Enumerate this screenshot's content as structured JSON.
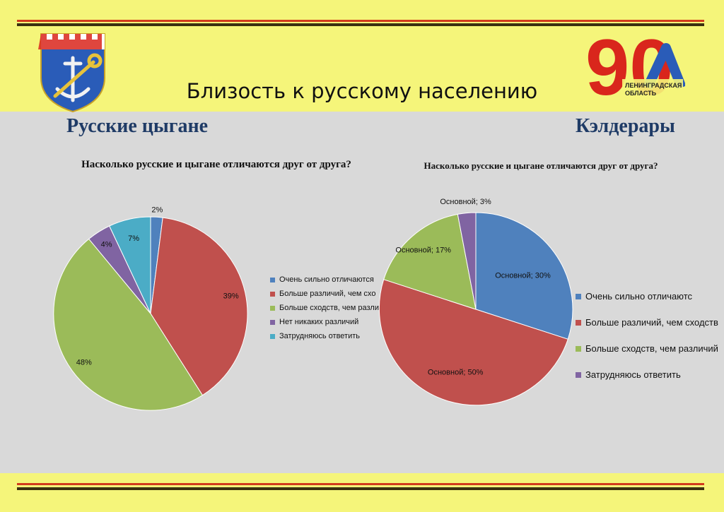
{
  "slide": {
    "title": "Близость к русскому населению",
    "logo_text": [
      "ЛЕНИНГРАДСКАЯ",
      "ОБЛАСТЬ"
    ],
    "logo_number": "90",
    "colors": {
      "background": "#f5f57a",
      "panel": "#d9d9d9",
      "band_dark": "#3a3010",
      "band_red": "#d23b1c",
      "group_title": "#1f3b66",
      "logo_red": "#d9261c"
    }
  },
  "left_group": {
    "title": "Русские цыгане"
  },
  "right_group": {
    "title": "Кэлдерары"
  },
  "chart_data": [
    {
      "type": "pie",
      "title": "Насколько русские и цыгане отличаются друг от друга?",
      "labels": [
        "Очень сильно отличаются",
        "Больше различий, чем сходств",
        "Больше сходств, чем различий",
        "Нет никаких различий",
        "Затрудняюсь ответить"
      ],
      "legend_display": [
        "Очень сильно отличаются",
        "Больше различий, чем схо",
        "Больше сходств, чем разли",
        "Нет никаких различий",
        "Затрудняюсь ответить"
      ],
      "values": [
        2,
        39,
        48,
        4,
        7
      ],
      "data_labels": [
        "2%",
        "39%",
        "48%",
        "4%",
        "7%"
      ],
      "colors": [
        "#4f81bd",
        "#c0504d",
        "#9bbb59",
        "#8064a2",
        "#4bacc6"
      ],
      "legend": "right"
    },
    {
      "type": "pie",
      "title": "Насколько русские и цыгане отличаются друг от друга?",
      "labels": [
        "Очень сильно отличаютс",
        "Больше различий, чем сходств",
        "Больше сходств, чем различий",
        "Затрудняюсь ответить"
      ],
      "values": [
        30,
        50,
        17,
        3
      ],
      "data_labels": [
        "Основной; 30%",
        "Основной; 50%",
        "Основной; 17%",
        "Основной; 3%"
      ],
      "colors": [
        "#4f81bd",
        "#c0504d",
        "#9bbb59",
        "#8064a2"
      ],
      "legend": "right"
    }
  ]
}
